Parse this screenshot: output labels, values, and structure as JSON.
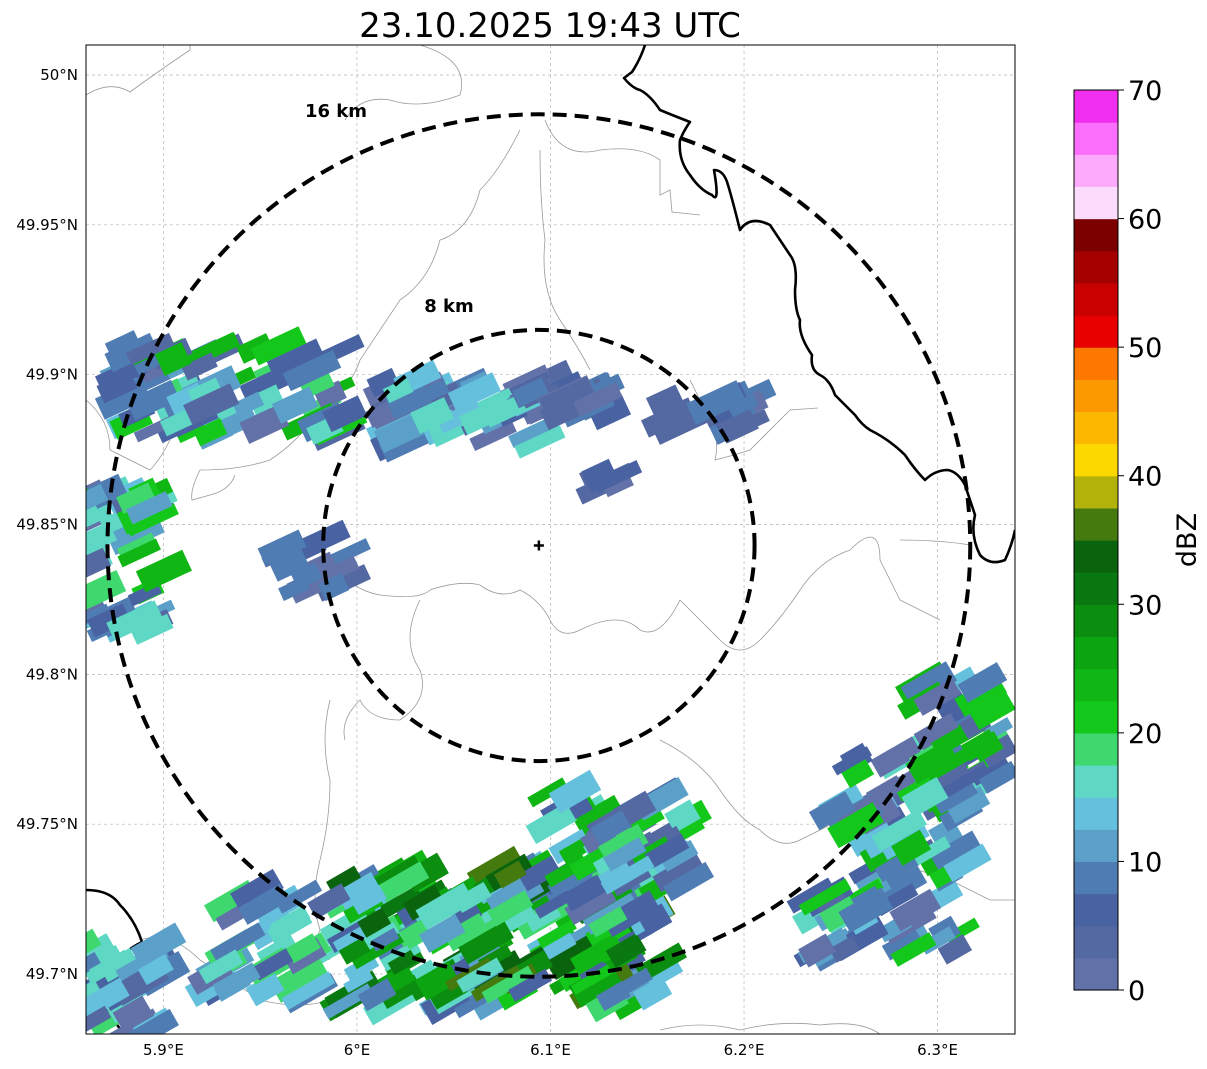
{
  "title": "23.10.2025 19:43 UTC",
  "map": {
    "lon_range": [
      5.86,
      6.34
    ],
    "lat_range": [
      49.68,
      50.01
    ],
    "lon_ticks": [
      {
        "value": 5.9,
        "label": "5.9°E"
      },
      {
        "value": 6.0,
        "label": "6°E"
      },
      {
        "value": 6.1,
        "label": "6.1°E"
      },
      {
        "value": 6.2,
        "label": "6.2°E"
      },
      {
        "value": 6.3,
        "label": "6.3°E"
      }
    ],
    "lat_ticks": [
      {
        "value": 49.7,
        "label": "49.7°N"
      },
      {
        "value": 49.75,
        "label": "49.75°N"
      },
      {
        "value": 49.8,
        "label": "49.8°N"
      },
      {
        "value": 49.85,
        "label": "49.85°N"
      },
      {
        "value": 49.9,
        "label": "49.9°N"
      },
      {
        "value": 49.95,
        "label": "49.95°N"
      },
      {
        "value": 50.0,
        "label": "50°N"
      }
    ],
    "gridlines": true,
    "radar_site": {
      "lon": 6.094,
      "lat": 49.843
    },
    "range_rings": [
      {
        "label": "8 km",
        "radius_km": 8
      },
      {
        "label": "16 km",
        "radius_km": 16
      }
    ]
  },
  "colorbar": {
    "label": "dBZ",
    "ticks": [
      "0",
      "10",
      "20",
      "30",
      "40",
      "50",
      "60",
      "70"
    ],
    "colors": [
      "#6272a8",
      "#5468a2",
      "#4862a2",
      "#4f7cb2",
      "#5ba0c8",
      "#64c0dc",
      "#5ed8c4",
      "#3fd86e",
      "#13c81b",
      "#10b614",
      "#0ca410",
      "#0b8e10",
      "#0a7810",
      "#0a640e",
      "#457a0e",
      "#b2b20a",
      "#fcd800",
      "#fcb800",
      "#fc9800",
      "#fc7800",
      "#e80000",
      "#c80000",
      "#a40000",
      "#7c0000",
      "#fcdcfc",
      "#fcaafc",
      "#fc6efc",
      "#f02ef0"
    ]
  }
}
